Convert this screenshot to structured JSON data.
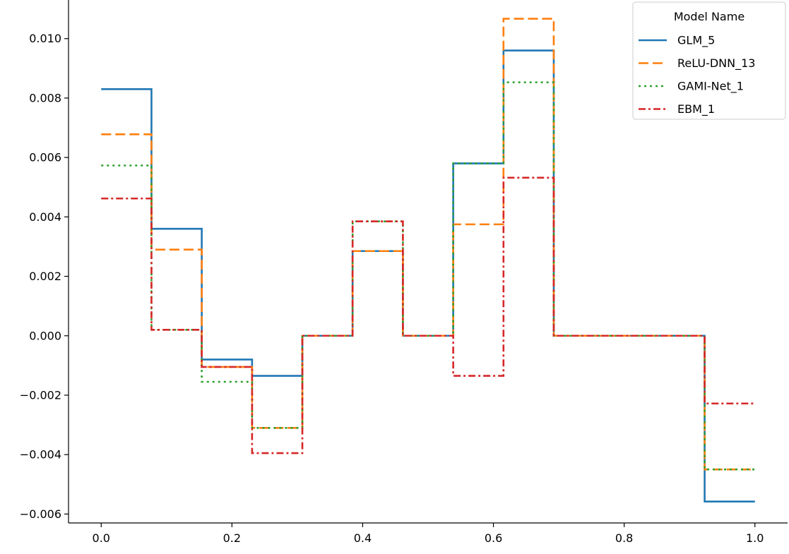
{
  "chart_data": {
    "type": "line",
    "title": "",
    "xlabel": "",
    "ylabel": "",
    "xlim": [
      -0.05,
      1.05
    ],
    "ylim": [
      -0.0063,
      0.0113
    ],
    "x_ticks": [
      0.0,
      0.2,
      0.4,
      0.6,
      0.8,
      1.0
    ],
    "x_tick_labels": [
      "0.0",
      "0.2",
      "0.4",
      "0.6",
      "0.8",
      "1.0"
    ],
    "y_ticks": [
      -0.006,
      -0.004,
      -0.002,
      0.0,
      0.002,
      0.004,
      0.006,
      0.008,
      0.01
    ],
    "y_tick_labels": [
      "−0.006",
      "−0.004",
      "−0.002",
      "0.000",
      "0.002",
      "0.004",
      "0.006",
      "0.008",
      "0.010"
    ],
    "grid": false,
    "step": "post",
    "x": [
      0.0,
      0.0769,
      0.1538,
      0.2308,
      0.3077,
      0.3846,
      0.4615,
      0.5385,
      0.6154,
      0.6923,
      0.7692,
      0.8462,
      0.9231,
      1.0
    ],
    "legend": {
      "title": "Model Name",
      "placement": "top-right"
    },
    "series": [
      {
        "name": "GLM_5",
        "color": "#1f77b4",
        "dash": "solid",
        "values": [
          0.0083,
          0.0036,
          -0.0008,
          -0.00135,
          0.0,
          0.00285,
          0.0,
          0.0058,
          0.0096,
          0.0,
          0.0,
          0.0,
          -0.00558,
          -0.00558
        ]
      },
      {
        "name": "ReLU-DNN_13",
        "color": "#ff7f0e",
        "dash": "dashed",
        "values": [
          0.00678,
          0.0029,
          -0.00105,
          -0.0031,
          0.0,
          0.00285,
          0.0,
          0.00375,
          0.01067,
          0.0,
          0.0,
          0.0,
          -0.0045,
          -0.0045
        ]
      },
      {
        "name": "GAMI-Net_1",
        "color": "#2ca02c",
        "dash": "dotted",
        "values": [
          0.00573,
          0.0002,
          -0.00155,
          -0.0031,
          0.0,
          0.00385,
          0.0,
          0.0058,
          0.00853,
          0.0,
          0.0,
          0.0,
          -0.0045,
          -0.0045
        ]
      },
      {
        "name": "EBM_1",
        "color": "#d62728",
        "dash": "dashdot",
        "values": [
          0.00462,
          0.0002,
          -0.00105,
          -0.00395,
          0.0,
          0.00385,
          0.0,
          -0.00135,
          0.00532,
          0.0,
          0.0,
          0.0,
          -0.00228,
          -0.00228
        ]
      }
    ]
  }
}
